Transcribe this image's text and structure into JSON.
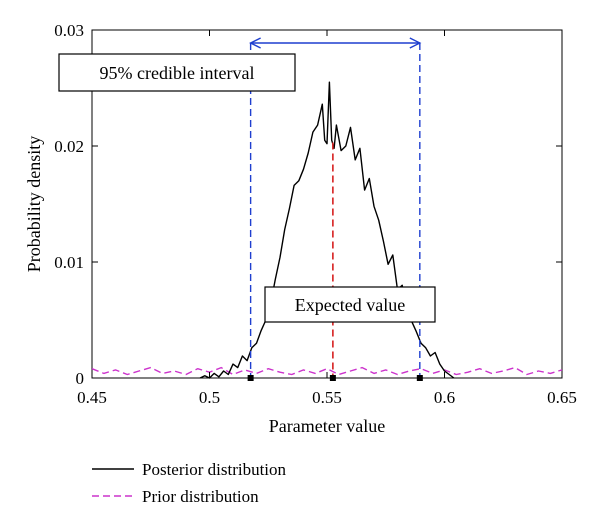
{
  "chart_data": {
    "type": "line",
    "xlabel": "Parameter value",
    "ylabel": "Probability density",
    "xlim": [
      0.45,
      0.65
    ],
    "ylim": [
      0,
      0.03
    ],
    "xticks": [
      0.45,
      0.5,
      0.55,
      0.6,
      0.65
    ],
    "xtick_labels": [
      "0.45",
      "0.5",
      "0.55",
      "0.6",
      "0.65"
    ],
    "yticks": [
      0,
      0.01,
      0.02,
      0.03
    ],
    "ytick_labels": [
      "0",
      "0.01",
      "0.02",
      "0.03"
    ],
    "grid": false,
    "legend_position": "bottom-left, below the plot",
    "series": [
      {
        "name": "Posterior distribution",
        "color": "#000000",
        "style": "solid",
        "x": [
          0.496,
          0.498,
          0.5,
          0.502,
          0.504,
          0.506,
          0.508,
          0.51,
          0.512,
          0.514,
          0.516,
          0.518,
          0.52,
          0.522,
          0.524,
          0.526,
          0.528,
          0.53,
          0.532,
          0.534,
          0.536,
          0.538,
          0.54,
          0.542,
          0.544,
          0.546,
          0.548,
          0.549,
          0.55,
          0.551,
          0.552,
          0.553,
          0.554,
          0.556,
          0.558,
          0.56,
          0.562,
          0.564,
          0.566,
          0.568,
          0.57,
          0.572,
          0.574,
          0.576,
          0.578,
          0.58,
          0.582,
          0.584,
          0.586,
          0.588,
          0.59,
          0.592,
          0.594,
          0.596,
          0.598,
          0.6,
          0.602,
          0.604
        ],
        "values": [
          0,
          0.0002,
          0,
          0.0004,
          0.0001,
          0.0006,
          0.0003,
          0.0012,
          0.0009,
          0.0019,
          0.0015,
          0.0026,
          0.003,
          0.0041,
          0.005,
          0.0064,
          0.0085,
          0.0104,
          0.0128,
          0.0146,
          0.0166,
          0.017,
          0.018,
          0.0194,
          0.0212,
          0.0218,
          0.0236,
          0.0205,
          0.0202,
          0.0255,
          0.0205,
          0.0198,
          0.0218,
          0.0196,
          0.02,
          0.0216,
          0.0188,
          0.0198,
          0.0162,
          0.0172,
          0.0148,
          0.0136,
          0.0118,
          0.0098,
          0.0106,
          0.0076,
          0.008,
          0.0057,
          0.0049,
          0.004,
          0.003,
          0.0026,
          0.0019,
          0.0022,
          0.0012,
          0.0006,
          0.0003,
          0
        ]
      },
      {
        "name": "Prior distribution",
        "color": "#cc33cc",
        "style": "dashed",
        "x": [
          0.45,
          0.455,
          0.46,
          0.465,
          0.47,
          0.475,
          0.48,
          0.485,
          0.49,
          0.495,
          0.5,
          0.505,
          0.51,
          0.515,
          0.52,
          0.525,
          0.53,
          0.535,
          0.54,
          0.545,
          0.55,
          0.555,
          0.56,
          0.565,
          0.57,
          0.575,
          0.58,
          0.585,
          0.59,
          0.595,
          0.6,
          0.605,
          0.61,
          0.615,
          0.62,
          0.625,
          0.63,
          0.635,
          0.64,
          0.645,
          0.65
        ],
        "values": [
          0.0008,
          0.0004,
          0.0007,
          0.0003,
          0.0006,
          0.0009,
          0.0004,
          0.0006,
          0.0003,
          0.0008,
          0.0005,
          0.0009,
          0.0003,
          0.0007,
          0.0004,
          0.0008,
          0.0005,
          0.0003,
          0.0007,
          0.0004,
          0.0008,
          0.0003,
          0.0006,
          0.0009,
          0.0004,
          0.0007,
          0.0003,
          0.0006,
          0.0008,
          0.0004,
          0.0007,
          0.0003,
          0.0005,
          0.0008,
          0.0004,
          0.0006,
          0.0009,
          0.0003,
          0.0006,
          0.0004,
          0.0007
        ]
      }
    ],
    "annotations": {
      "credible_interval": {
        "label": "95% credible interval",
        "lower": 0.5175,
        "upper": 0.5895,
        "color": "#1f3fcf"
      },
      "expected_value": {
        "label": "Expected value",
        "value": 0.5525,
        "color": "#d62020"
      }
    }
  }
}
